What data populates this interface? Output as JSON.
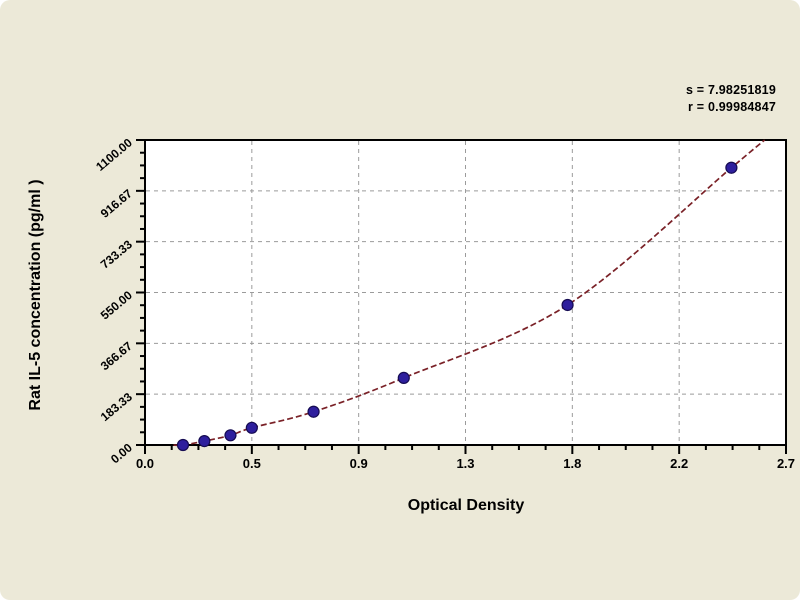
{
  "figure": {
    "background_color": "#ece9d8",
    "annotation": {
      "s_line": "s = 7.98251819",
      "r_line": "r = 0.99984847"
    }
  },
  "chart_data": {
    "type": "scatter",
    "title": "",
    "xlabel": "Optical Density",
    "ylabel": "Rat IL-5 concentration (pg/ml )",
    "series": [
      {
        "name": "standard-points",
        "x": [
          0.16,
          0.25,
          0.36,
          0.45,
          0.71,
          1.09,
          1.78,
          2.47
        ],
        "y": [
          0,
          14,
          35,
          62,
          120,
          242,
          505,
          1000
        ]
      }
    ],
    "fit_curve": {
      "style": "dashed",
      "extend_left": [
        0.12,
        0
      ],
      "extend_right": [
        2.61,
        1100
      ]
    },
    "annotations": [
      "s = 7.98251819",
      "r = 0.99984847"
    ],
    "xlim": [
      0,
      2.7
    ],
    "ylim": [
      0,
      1100
    ],
    "x_major_ticks": [
      0,
      0.45,
      0.9,
      1.35,
      1.8,
      2.25,
      2.7
    ],
    "x_tick_labels": [
      "0.0",
      "0.5",
      "0.9",
      "1.3",
      "1.8",
      "2.2",
      "2.7"
    ],
    "y_major_ticks": [
      0,
      183.33,
      366.67,
      550.0,
      733.33,
      916.67,
      1100.0
    ],
    "y_tick_labels": [
      "0.00",
      "183.33",
      "366.67",
      "550.00",
      "733.33",
      "916.67",
      "1100.00"
    ],
    "x_minor_divisions": 4,
    "y_minor_divisions": 4,
    "grid": "dashed-major",
    "legend": "none",
    "colors": {
      "plot_bg": "#ffffff",
      "frame": "#000000",
      "grid": "#9b9b9b",
      "curve": "#7a2127",
      "marker_fill": "#2e1f9d",
      "marker_edge": "#150b52",
      "text": "#000000"
    }
  }
}
